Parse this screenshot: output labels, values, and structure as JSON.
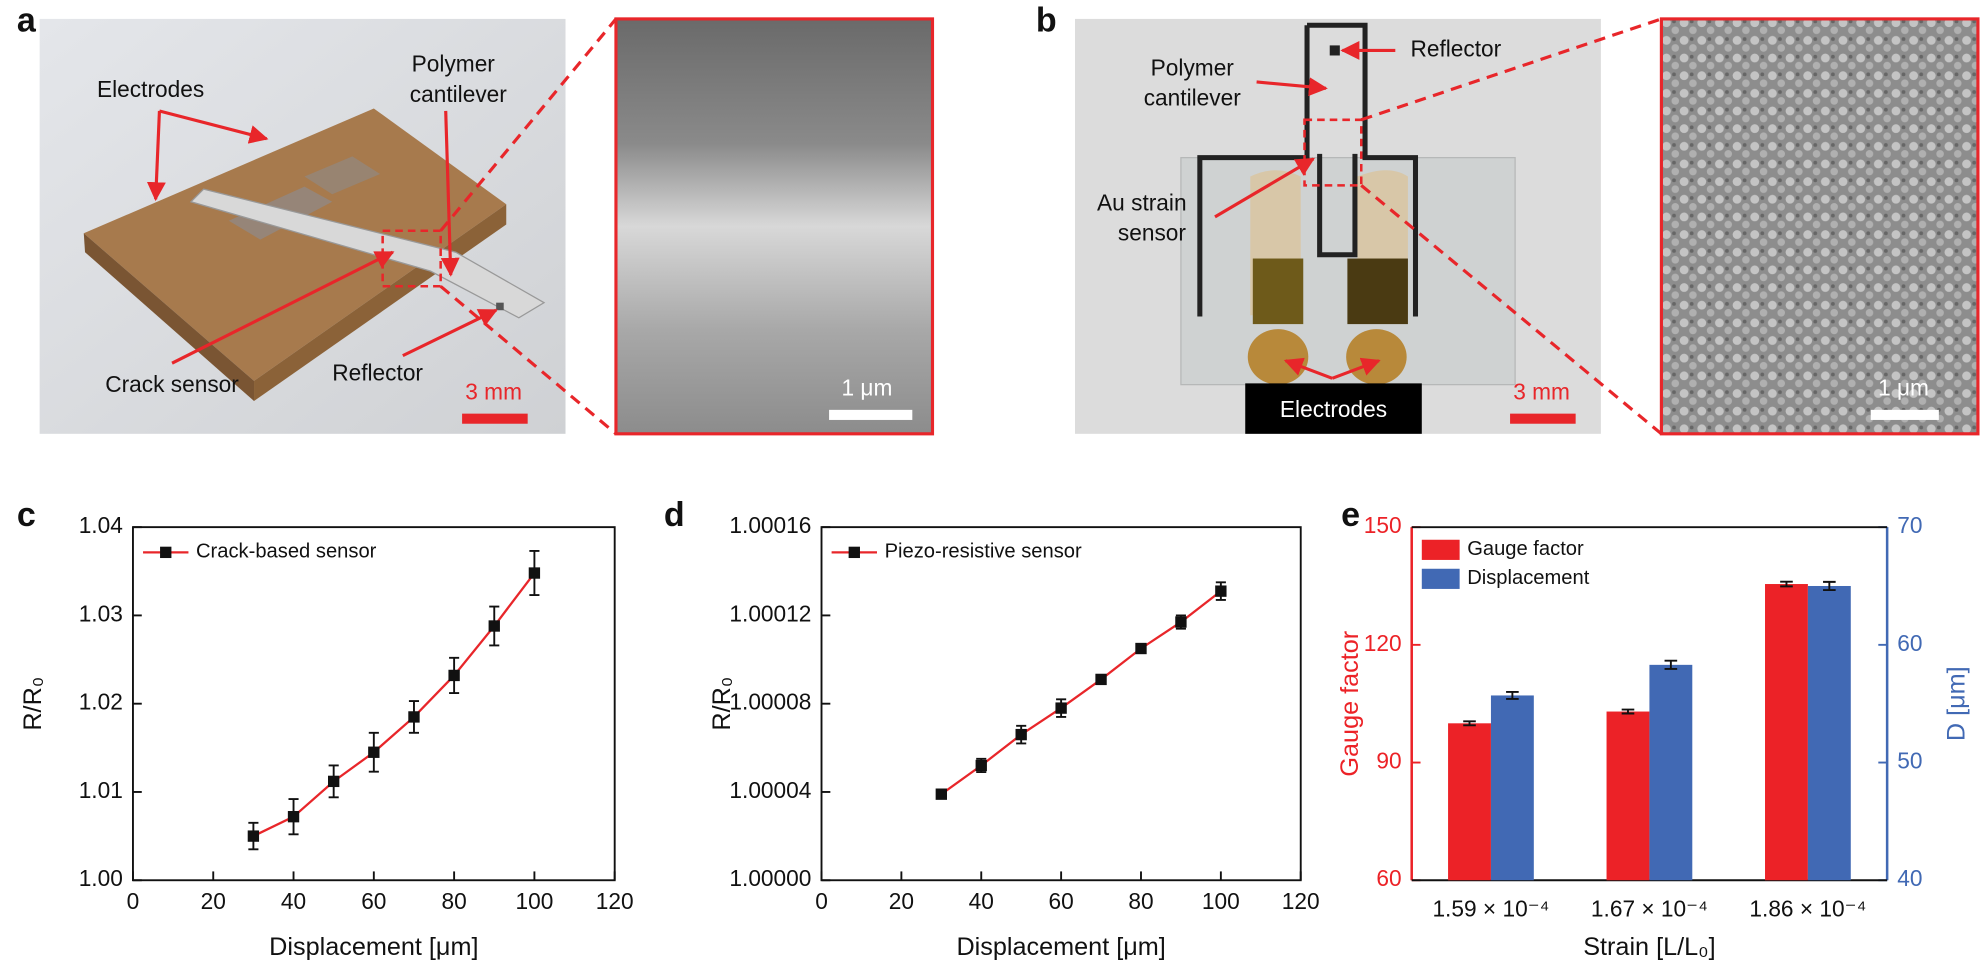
{
  "panel_labels": [
    "a",
    "b",
    "c",
    "d",
    "e"
  ],
  "photos": {
    "a": {
      "electrodes": "Electrodes",
      "cantilever": [
        "Polymer",
        "cantilever"
      ],
      "crack": "Crack sensor",
      "reflector": "Reflector",
      "scale": "3 mm",
      "sem_scale": "1 μm"
    },
    "b": {
      "reflector": "Reflector",
      "cantilever": [
        "Polymer",
        "cantilever"
      ],
      "sensor": [
        "Au strain",
        "sensor"
      ],
      "electrodes": "Electrodes",
      "scale": "3 mm",
      "sem_scale": "1 μm"
    }
  },
  "chart_data": [
    {
      "type": "line",
      "xlabel": "Displacement [μm]",
      "ylabel": "R/R₀",
      "x": [
        30,
        40,
        50,
        60,
        70,
        80,
        90,
        100
      ],
      "series": [
        {
          "name": "Crack-based sensor",
          "color": "#e8262a",
          "marker_color": "#111111",
          "values": [
            1.005,
            1.0072,
            1.0112,
            1.0145,
            1.0185,
            1.0232,
            1.0288,
            1.0348
          ],
          "errors": [
            0.0015,
            0.002,
            0.0018,
            0.0022,
            0.0018,
            0.002,
            0.0022,
            0.0025
          ]
        }
      ],
      "xlim": [
        0,
        120
      ],
      "xticks": [
        0,
        20,
        40,
        60,
        80,
        100,
        120
      ],
      "ylim": [
        1,
        1.04
      ],
      "yticks": [
        {
          "value": 1,
          "label": "1.00"
        },
        1.01,
        1.02,
        1.03,
        1.04
      ],
      "legend": "upper left"
    },
    {
      "type": "line",
      "xlabel": "Displacement [μm]",
      "ylabel": "R/R₀",
      "x": [
        30,
        40,
        50,
        60,
        70,
        80,
        90,
        100
      ],
      "series": [
        {
          "name": "Piezo-resistive sensor",
          "color": "#e8262a",
          "marker_color": "#111111",
          "values": [
            1.000039,
            1.000052,
            1.000066,
            1.000078,
            1.000091,
            1.000105,
            1.000117,
            1.000131
          ],
          "errors": [
            2e-06,
            3e-06,
            4e-06,
            4e-06,
            2e-06,
            2e-06,
            3e-06,
            4e-06
          ]
        }
      ],
      "xlim": [
        0,
        120
      ],
      "xticks": [
        0,
        20,
        40,
        60,
        80,
        100,
        120
      ],
      "ylim": [
        1,
        1.00016
      ],
      "yticks": [
        {
          "value": 1,
          "label": "1.00000"
        },
        1.00004,
        1.00008,
        1.00012,
        1.00016
      ],
      "legend": "upper left"
    },
    {
      "type": "bar",
      "xlabel": "Strain [L/L₀]",
      "ylabel": "Gauge factor",
      "y2label": "D [μm]",
      "categories": [
        "1.59 × 10⁻⁴",
        "1.67 × 10⁻⁴",
        "1.86 × 10⁻⁴"
      ],
      "series": [
        {
          "name": "Gauge factor",
          "color": "#ec2227",
          "values": [
            100,
            103,
            135.5
          ],
          "errors": [
            0.5,
            0.5,
            0.6
          ]
        },
        {
          "name": "Displacement",
          "color": "#4169b4",
          "axis": "y2",
          "values": [
            55.7,
            58.3,
            65
          ],
          "errors": [
            0.3,
            0.35,
            0.35
          ]
        }
      ],
      "ylim": [
        60,
        150
      ],
      "yticks": [
        60,
        90,
        120,
        150
      ],
      "y2lim": [
        40,
        70
      ],
      "y2ticks": [
        40,
        50,
        60,
        70
      ],
      "legend": "upper left"
    }
  ]
}
